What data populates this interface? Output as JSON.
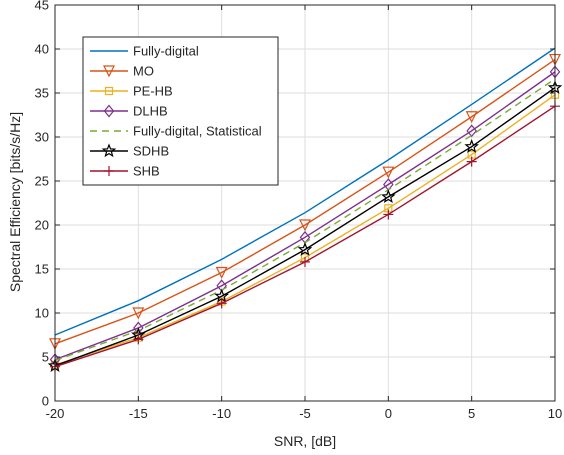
{
  "chart_data": {
    "type": "line",
    "title": "",
    "xlabel": "SNR, [dB]",
    "ylabel": "Spectral Efficiency [bits/s/Hz]",
    "x": [
      -20,
      -15,
      -10,
      -5,
      0,
      5,
      10
    ],
    "xlim": [
      -20,
      10
    ],
    "ylim": [
      0,
      45
    ],
    "xticks": [
      -20,
      -15,
      -10,
      -5,
      0,
      5,
      10
    ],
    "yticks": [
      0,
      5,
      10,
      15,
      20,
      25,
      30,
      35,
      40,
      45
    ],
    "grid": true,
    "legend_position": "top-left",
    "series": [
      {
        "name": "Fully-digital",
        "color": "#0072BD",
        "marker": "none",
        "dash": "solid",
        "values": [
          7.5,
          11.4,
          16.1,
          21.4,
          27.4,
          33.7,
          40.1
        ]
      },
      {
        "name": "MO",
        "color": "#D95319",
        "marker": "triangle-down",
        "dash": "solid",
        "values": [
          6.5,
          10.0,
          14.6,
          20.0,
          26.0,
          32.3,
          38.8
        ]
      },
      {
        "name": "PE-HB",
        "color": "#EDB120",
        "marker": "square",
        "dash": "solid",
        "values": [
          4.1,
          7.2,
          11.3,
          16.3,
          21.9,
          28.0,
          34.8
        ]
      },
      {
        "name": "DLHB",
        "color": "#7E2F8E",
        "marker": "diamond",
        "dash": "solid",
        "values": [
          4.7,
          8.3,
          13.1,
          18.6,
          24.6,
          30.7,
          37.4
        ]
      },
      {
        "name": "Fully-digital, Statistical",
        "color": "#77AC30",
        "marker": "none",
        "dash": "dashed",
        "values": [
          4.6,
          8.0,
          12.6,
          18.0,
          24.0,
          30.2,
          36.6
        ]
      },
      {
        "name": "SDHB",
        "color": "#000000",
        "marker": "star",
        "dash": "solid",
        "values": [
          4.0,
          7.5,
          11.9,
          17.2,
          23.2,
          28.9,
          35.6
        ]
      },
      {
        "name": "SHB",
        "color": "#A2142F",
        "marker": "plus",
        "dash": "solid",
        "values": [
          3.9,
          7.0,
          11.1,
          15.8,
          21.2,
          27.2,
          33.5
        ]
      }
    ]
  }
}
